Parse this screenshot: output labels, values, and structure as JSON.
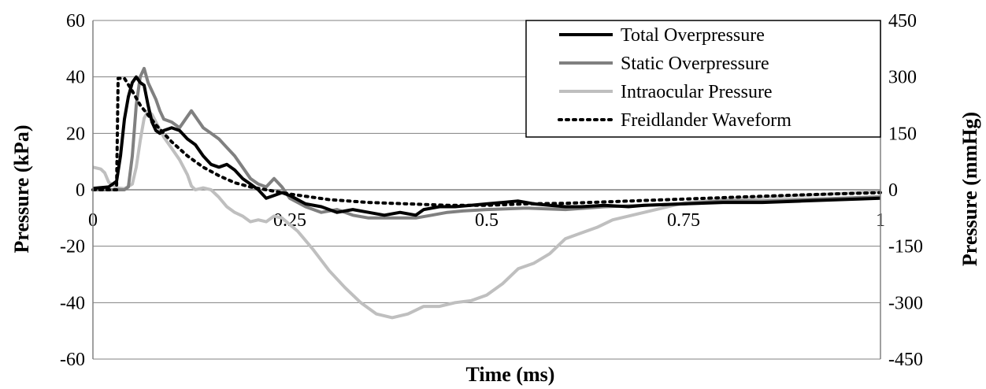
{
  "chart_data": {
    "type": "line",
    "xlabel": "Time (ms)",
    "ylabel": "Pressure (kPa)",
    "y2label": "Pressure (mmHg)",
    "xlim": [
      0,
      1
    ],
    "ylim": [
      -60,
      60
    ],
    "y2lim": [
      -450,
      450
    ],
    "x_ticks": [
      {
        "value": 0,
        "label": "0"
      },
      {
        "value": 0.25,
        "label": "0.25"
      },
      {
        "value": 0.5,
        "label": "0.5"
      },
      {
        "value": 0.75,
        "label": "0.75"
      },
      {
        "value": 1,
        "label": "1"
      }
    ],
    "y_ticks": [
      {
        "value": 60,
        "label": "60"
      },
      {
        "value": 40,
        "label": "40"
      },
      {
        "value": 20,
        "label": "20"
      },
      {
        "value": 0,
        "label": "0"
      },
      {
        "value": -20,
        "label": "-20"
      },
      {
        "value": -40,
        "label": "-40"
      },
      {
        "value": -60,
        "label": "-60"
      }
    ],
    "y2_ticks": [
      {
        "value": 450,
        "label": "450"
      },
      {
        "value": 300,
        "label": "300"
      },
      {
        "value": 150,
        "label": "150"
      },
      {
        "value": 0,
        "label": "0"
      },
      {
        "value": -150,
        "label": "-150"
      },
      {
        "value": -300,
        "label": "-300"
      },
      {
        "value": -450,
        "label": "-450"
      }
    ],
    "grid": true,
    "legend_position": "top-right",
    "series": [
      {
        "name": "Total Overpressure",
        "color": "#000000",
        "width": 4,
        "dash": "",
        "axis": "left",
        "points": [
          [
            0,
            0.5
          ],
          [
            0.02,
            1
          ],
          [
            0.03,
            3
          ],
          [
            0.035,
            12
          ],
          [
            0.04,
            25
          ],
          [
            0.045,
            33
          ],
          [
            0.05,
            38
          ],
          [
            0.055,
            40
          ],
          [
            0.06,
            38
          ],
          [
            0.065,
            37
          ],
          [
            0.07,
            30
          ],
          [
            0.075,
            24
          ],
          [
            0.08,
            21
          ],
          [
            0.085,
            20
          ],
          [
            0.09,
            21
          ],
          [
            0.1,
            22
          ],
          [
            0.11,
            21
          ],
          [
            0.12,
            18
          ],
          [
            0.13,
            16
          ],
          [
            0.14,
            12
          ],
          [
            0.15,
            9
          ],
          [
            0.16,
            8
          ],
          [
            0.17,
            9
          ],
          [
            0.18,
            7
          ],
          [
            0.19,
            4
          ],
          [
            0.2,
            2
          ],
          [
            0.21,
            0
          ],
          [
            0.22,
            -3
          ],
          [
            0.23,
            -2
          ],
          [
            0.24,
            -1
          ],
          [
            0.25,
            -2
          ],
          [
            0.27,
            -5
          ],
          [
            0.29,
            -6
          ],
          [
            0.31,
            -8
          ],
          [
            0.33,
            -7
          ],
          [
            0.35,
            -8
          ],
          [
            0.37,
            -9
          ],
          [
            0.39,
            -8
          ],
          [
            0.41,
            -9
          ],
          [
            0.42,
            -7
          ],
          [
            0.44,
            -6
          ],
          [
            0.46,
            -6
          ],
          [
            0.48,
            -5.5
          ],
          [
            0.5,
            -5
          ],
          [
            0.52,
            -4.5
          ],
          [
            0.54,
            -4
          ],
          [
            0.56,
            -5
          ],
          [
            0.58,
            -5.5
          ],
          [
            0.6,
            -6
          ],
          [
            0.62,
            -6
          ],
          [
            0.65,
            -5.5
          ],
          [
            0.68,
            -6
          ],
          [
            0.7,
            -5.5
          ],
          [
            0.75,
            -5
          ],
          [
            0.8,
            -4.5
          ],
          [
            0.85,
            -4.5
          ],
          [
            0.9,
            -4
          ],
          [
            0.95,
            -3.5
          ],
          [
            1.0,
            -3
          ]
        ]
      },
      {
        "name": "Static Overpressure",
        "color": "#808080",
        "width": 4,
        "dash": "",
        "axis": "left",
        "points": [
          [
            0,
            0
          ],
          [
            0.04,
            0
          ],
          [
            0.045,
            1
          ],
          [
            0.05,
            12
          ],
          [
            0.055,
            30
          ],
          [
            0.06,
            40
          ],
          [
            0.065,
            43
          ],
          [
            0.07,
            38
          ],
          [
            0.075,
            35
          ],
          [
            0.08,
            32
          ],
          [
            0.085,
            28
          ],
          [
            0.09,
            25
          ],
          [
            0.1,
            24
          ],
          [
            0.11,
            22
          ],
          [
            0.12,
            26
          ],
          [
            0.125,
            28
          ],
          [
            0.13,
            26
          ],
          [
            0.14,
            22
          ],
          [
            0.15,
            20
          ],
          [
            0.16,
            18
          ],
          [
            0.17,
            15
          ],
          [
            0.18,
            12
          ],
          [
            0.19,
            8
          ],
          [
            0.2,
            4
          ],
          [
            0.21,
            2
          ],
          [
            0.22,
            1
          ],
          [
            0.23,
            4
          ],
          [
            0.24,
            1
          ],
          [
            0.25,
            -3
          ],
          [
            0.27,
            -6
          ],
          [
            0.29,
            -8
          ],
          [
            0.31,
            -7
          ],
          [
            0.33,
            -9
          ],
          [
            0.35,
            -10
          ],
          [
            0.37,
            -10
          ],
          [
            0.39,
            -10
          ],
          [
            0.41,
            -10
          ],
          [
            0.43,
            -9
          ],
          [
            0.45,
            -8
          ],
          [
            0.47,
            -7.5
          ],
          [
            0.5,
            -7
          ],
          [
            0.55,
            -6.5
          ],
          [
            0.6,
            -7
          ],
          [
            0.65,
            -6
          ],
          [
            0.7,
            -5.5
          ],
          [
            0.75,
            -5
          ],
          [
            0.8,
            -4
          ],
          [
            0.85,
            -4
          ],
          [
            0.9,
            -3.5
          ],
          [
            0.95,
            -3
          ],
          [
            1.0,
            -2.5
          ]
        ]
      },
      {
        "name": "Intraocular Pressure",
        "color": "#bfbfbf",
        "width": 4,
        "dash": "",
        "axis": "right",
        "points": [
          [
            0,
            60
          ],
          [
            0.01,
            55
          ],
          [
            0.015,
            45
          ],
          [
            0.02,
            20
          ],
          [
            0.03,
            5
          ],
          [
            0.04,
            3
          ],
          [
            0.05,
            15
          ],
          [
            0.055,
            60
          ],
          [
            0.06,
            130
          ],
          [
            0.065,
            190
          ],
          [
            0.07,
            210
          ],
          [
            0.075,
            200
          ],
          [
            0.08,
            180
          ],
          [
            0.09,
            140
          ],
          [
            0.1,
            110
          ],
          [
            0.11,
            80
          ],
          [
            0.12,
            40
          ],
          [
            0.125,
            10
          ],
          [
            0.13,
            0
          ],
          [
            0.14,
            5
          ],
          [
            0.15,
            0
          ],
          [
            0.16,
            -20
          ],
          [
            0.17,
            -45
          ],
          [
            0.18,
            -60
          ],
          [
            0.19,
            -70
          ],
          [
            0.2,
            -85
          ],
          [
            0.21,
            -80
          ],
          [
            0.22,
            -85
          ],
          [
            0.23,
            -70
          ],
          [
            0.24,
            -75
          ],
          [
            0.26,
            -110
          ],
          [
            0.28,
            -160
          ],
          [
            0.3,
            -215
          ],
          [
            0.32,
            -260
          ],
          [
            0.34,
            -300
          ],
          [
            0.36,
            -330
          ],
          [
            0.38,
            -340
          ],
          [
            0.4,
            -330
          ],
          [
            0.42,
            -310
          ],
          [
            0.44,
            -310
          ],
          [
            0.46,
            -300
          ],
          [
            0.48,
            -295
          ],
          [
            0.5,
            -280
          ],
          [
            0.52,
            -250
          ],
          [
            0.54,
            -210
          ],
          [
            0.56,
            -195
          ],
          [
            0.58,
            -170
          ],
          [
            0.6,
            -130
          ],
          [
            0.62,
            -115
          ],
          [
            0.64,
            -100
          ],
          [
            0.66,
            -80
          ],
          [
            0.68,
            -70
          ],
          [
            0.7,
            -60
          ],
          [
            0.72,
            -50
          ],
          [
            0.75,
            -35
          ],
          [
            0.8,
            -25
          ],
          [
            0.85,
            -20
          ],
          [
            0.9,
            -15
          ],
          [
            0.95,
            -10
          ],
          [
            1.0,
            -5
          ]
        ]
      },
      {
        "name": "Freidlander Waveform",
        "color": "#000000",
        "width": 4,
        "dash": "3,6",
        "axis": "left",
        "points": [
          [
            0,
            0
          ],
          [
            0.03,
            0
          ],
          [
            0.032,
            39.5
          ],
          [
            0.04,
            39.5
          ],
          [
            0.05,
            35
          ],
          [
            0.06,
            30
          ],
          [
            0.08,
            23
          ],
          [
            0.1,
            17
          ],
          [
            0.12,
            12
          ],
          [
            0.14,
            8
          ],
          [
            0.16,
            5
          ],
          [
            0.18,
            2.5
          ],
          [
            0.2,
            1
          ],
          [
            0.22,
            0
          ],
          [
            0.25,
            -1.5
          ],
          [
            0.3,
            -3.5
          ],
          [
            0.35,
            -4.5
          ],
          [
            0.4,
            -5
          ],
          [
            0.45,
            -5.5
          ],
          [
            0.5,
            -5.5
          ],
          [
            0.55,
            -5
          ],
          [
            0.6,
            -4.8
          ],
          [
            0.65,
            -4.3
          ],
          [
            0.7,
            -3.8
          ],
          [
            0.75,
            -3.3
          ],
          [
            0.8,
            -2.8
          ],
          [
            0.85,
            -2.3
          ],
          [
            0.9,
            -1.8
          ],
          [
            0.95,
            -1.4
          ],
          [
            1.0,
            -1
          ]
        ]
      }
    ]
  }
}
